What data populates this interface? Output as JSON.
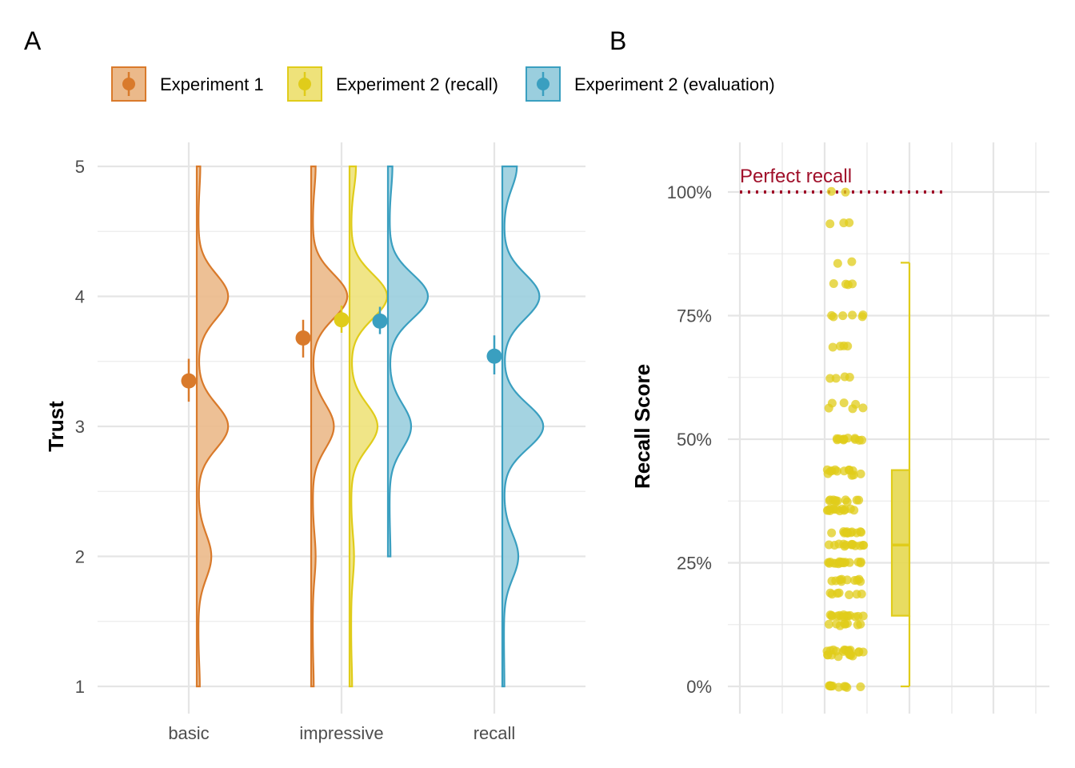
{
  "panel_labels": [
    "A",
    "B"
  ],
  "legend": [
    {
      "label": "Experiment 1",
      "color": "#D97A2B",
      "fill": "#EBB98A"
    },
    {
      "label": "Experiment 2 (recall)",
      "color": "#E0CC1A",
      "fill": "#EEE27A"
    },
    {
      "label": "Experiment 2 (evaluation)",
      "color": "#3A9FC0",
      "fill": "#9ACEDE"
    }
  ],
  "chart_data": [
    {
      "panel": "A",
      "type": "violin",
      "ylabel": "Trust",
      "xlabel": "",
      "categories": [
        "basic",
        "impressive",
        "recall"
      ],
      "yticks": [
        "1",
        "2",
        "3",
        "4",
        "5"
      ],
      "ylim": [
        1,
        5
      ],
      "grid": true,
      "series": [
        {
          "name": "Experiment 1",
          "category": "basic",
          "mean": 3.35,
          "ci": [
            3.19,
            3.52
          ],
          "density": {
            "1": 0.03,
            "2": 0.27,
            "3": 0.62,
            "4": 0.62,
            "5": 0.04
          }
        },
        {
          "name": "Experiment 1",
          "category": "impressive",
          "mean": 3.68,
          "ci": [
            3.53,
            3.82
          ],
          "density": {
            "1": 0.02,
            "2": 0.06,
            "3": 0.44,
            "4": 0.72,
            "5": 0.06
          }
        },
        {
          "name": "Experiment 2 (recall)",
          "category": "impressive",
          "mean": 3.82,
          "ci": [
            3.72,
            3.93
          ],
          "density": {
            "1": 0.02,
            "2": 0.06,
            "3": 0.55,
            "4": 0.75,
            "5": 0.1
          }
        },
        {
          "name": "Experiment 2 (evaluation)",
          "category": "impressive",
          "mean": 3.81,
          "ci": [
            3.71,
            3.92
          ],
          "density": {
            "2": 0.02,
            "3": 0.45,
            "4": 0.8,
            "5": 0.06
          }
        },
        {
          "name": "Experiment 2 (evaluation)",
          "category": "recall",
          "mean": 3.54,
          "ci": [
            3.4,
            3.7
          ],
          "density": {
            "1": 0.01,
            "2": 0.3,
            "3": 0.82,
            "4": 0.74,
            "5": 0.27
          }
        }
      ]
    },
    {
      "panel": "B",
      "type": "scatter",
      "ylabel": "Recall Score",
      "xlabel": "",
      "yticks": [
        "0%",
        "25%",
        "50%",
        "75%",
        "100%"
      ],
      "ylim": [
        0,
        1
      ],
      "grid": true,
      "annotation": {
        "text": "Perfect recall",
        "y": 1.0,
        "color": "#A0102A"
      },
      "points_color": "#E0CC1A",
      "points": [
        {
          "y": 1.0,
          "n": 2
        },
        {
          "y": 0.9375,
          "n": 3
        },
        {
          "y": 0.857,
          "n": 2
        },
        {
          "y": 0.8125,
          "n": 4
        },
        {
          "y": 0.75,
          "n": 6
        },
        {
          "y": 0.6875,
          "n": 4
        },
        {
          "y": 0.625,
          "n": 4
        },
        {
          "y": 0.5714,
          "n": 3
        },
        {
          "y": 0.5625,
          "n": 3
        },
        {
          "y": 0.5,
          "n": 11
        },
        {
          "y": 0.4375,
          "n": 9
        },
        {
          "y": 0.4286,
          "n": 4
        },
        {
          "y": 0.375,
          "n": 10
        },
        {
          "y": 0.3571,
          "n": 13
        },
        {
          "y": 0.3125,
          "n": 12
        },
        {
          "y": 0.2857,
          "n": 13
        },
        {
          "y": 0.25,
          "n": 16
        },
        {
          "y": 0.2143,
          "n": 10
        },
        {
          "y": 0.1875,
          "n": 7
        },
        {
          "y": 0.1429,
          "n": 14
        },
        {
          "y": 0.125,
          "n": 8
        },
        {
          "y": 0.0714,
          "n": 14
        },
        {
          "y": 0.0625,
          "n": 8
        },
        {
          "y": 0.0,
          "n": 11
        }
      ],
      "boxplot": {
        "min": 0.0,
        "q1": 0.143,
        "median": 0.286,
        "q3": 0.4375,
        "max": 0.857
      }
    }
  ]
}
